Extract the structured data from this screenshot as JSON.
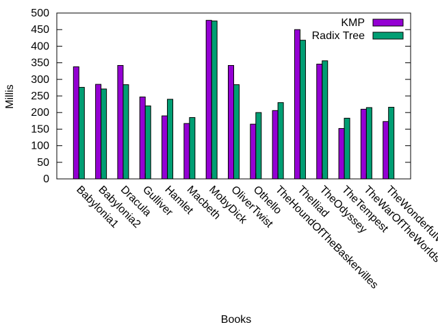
{
  "chart_data": {
    "type": "bar",
    "title": "",
    "xlabel": "Books",
    "ylabel": "Millis",
    "ylim": [
      0,
      500
    ],
    "yticks": [
      0,
      50,
      100,
      150,
      200,
      250,
      300,
      350,
      400,
      450,
      500
    ],
    "grid": false,
    "legend_position": "top-right",
    "categories": [
      "Babylonia1",
      "Babylonia2",
      "Dracula",
      "Gulliver",
      "Hamlet",
      "Macbeth",
      "MobyDick",
      "OliverTwist",
      "Othello",
      "TheHoundOfTheBaskervilles",
      "TheIliad",
      "TheOdyssey",
      "TheTempest",
      "TheWarOfTheWorlds",
      "TheWonderfulWizardOfOz"
    ],
    "series": [
      {
        "name": "KMP",
        "color": "#9400d3",
        "values": [
          338,
          285,
          342,
          247,
          190,
          167,
          478,
          342,
          165,
          206,
          450,
          346,
          152,
          210,
          173
        ]
      },
      {
        "name": "Radix Tree",
        "color": "#009e73",
        "values": [
          276,
          271,
          284,
          220,
          240,
          185,
          476,
          284,
          200,
          230,
          418,
          356,
          183,
          215,
          216
        ]
      }
    ]
  }
}
